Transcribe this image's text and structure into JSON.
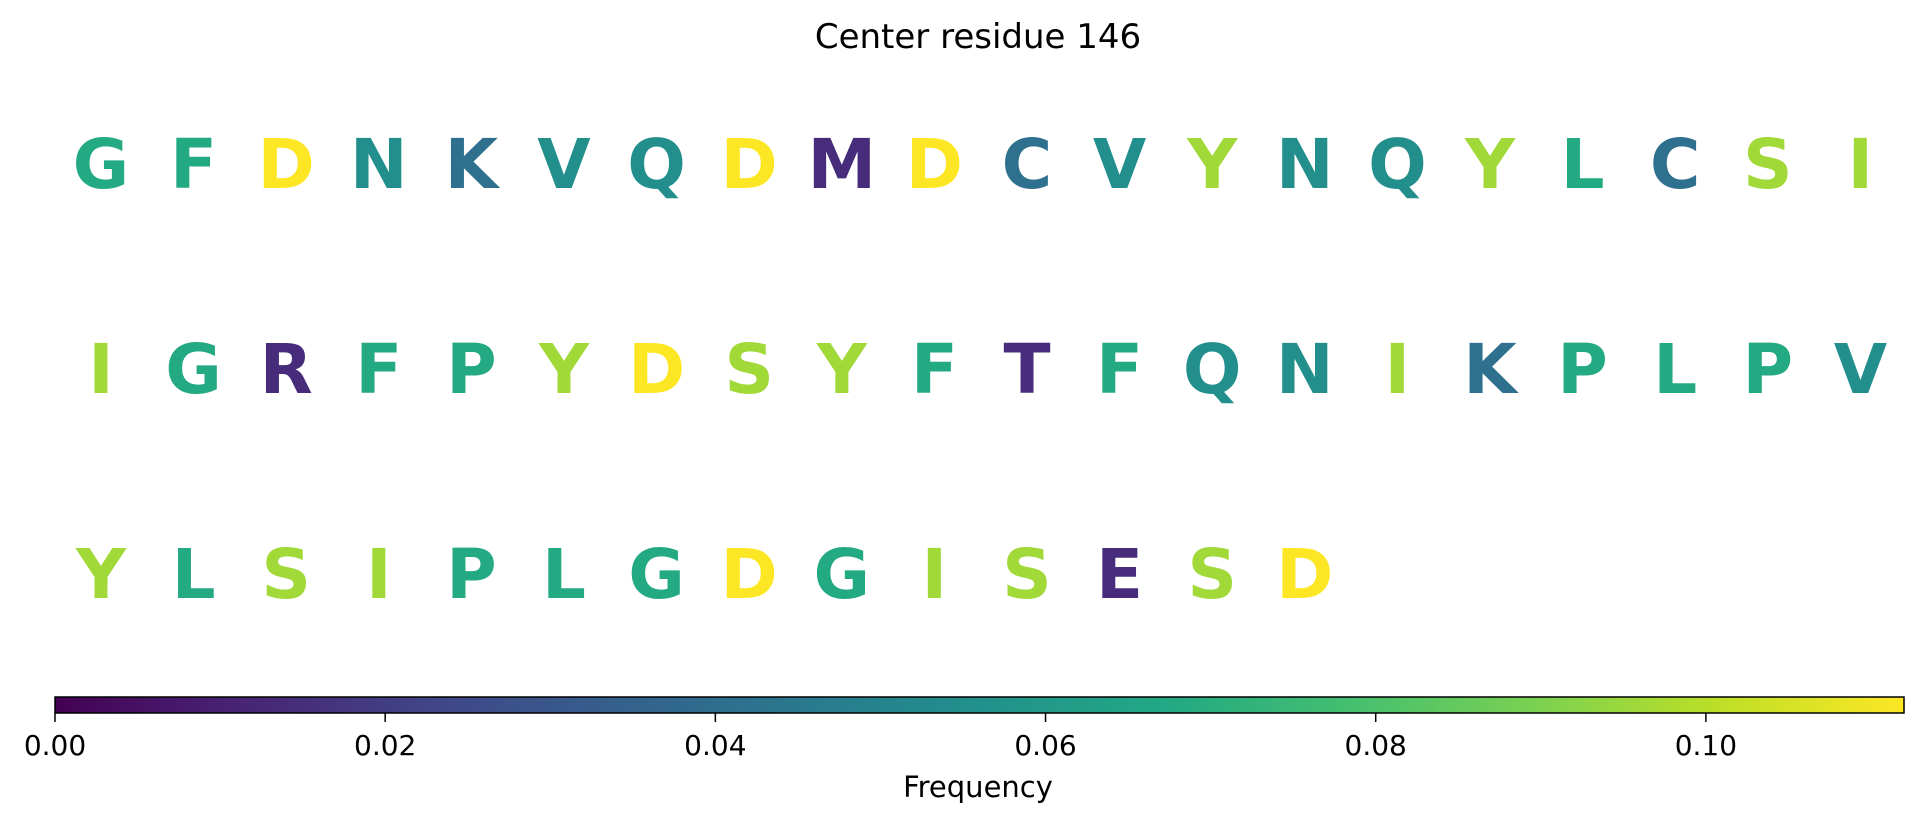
{
  "chart_data": {
    "type": "sequence-logo",
    "title": "Center residue 146",
    "residues": [
      {
        "letter": "G",
        "value": 0.068
      },
      {
        "letter": "F",
        "value": 0.068
      },
      {
        "letter": "D",
        "value": 0.112
      },
      {
        "letter": "N",
        "value": 0.055
      },
      {
        "letter": "K",
        "value": 0.041
      },
      {
        "letter": "V",
        "value": 0.055
      },
      {
        "letter": "Q",
        "value": 0.055
      },
      {
        "letter": "D",
        "value": 0.112
      },
      {
        "letter": "M",
        "value": 0.014
      },
      {
        "letter": "D",
        "value": 0.112
      },
      {
        "letter": "C",
        "value": 0.041
      },
      {
        "letter": "V",
        "value": 0.055
      },
      {
        "letter": "Y",
        "value": 0.096
      },
      {
        "letter": "N",
        "value": 0.055
      },
      {
        "letter": "Q",
        "value": 0.055
      },
      {
        "letter": "Y",
        "value": 0.096
      },
      {
        "letter": "L",
        "value": 0.068
      },
      {
        "letter": "C",
        "value": 0.041
      },
      {
        "letter": "S",
        "value": 0.096
      },
      {
        "letter": "I",
        "value": 0.096
      },
      {
        "letter": "I",
        "value": 0.096
      },
      {
        "letter": "G",
        "value": 0.068
      },
      {
        "letter": "R",
        "value": 0.014
      },
      {
        "letter": "F",
        "value": 0.068
      },
      {
        "letter": "P",
        "value": 0.068
      },
      {
        "letter": "Y",
        "value": 0.096
      },
      {
        "letter": "D",
        "value": 0.112
      },
      {
        "letter": "S",
        "value": 0.096
      },
      {
        "letter": "Y",
        "value": 0.096
      },
      {
        "letter": "F",
        "value": 0.068
      },
      {
        "letter": "T",
        "value": 0.014
      },
      {
        "letter": "F",
        "value": 0.068
      },
      {
        "letter": "Q",
        "value": 0.055
      },
      {
        "letter": "N",
        "value": 0.055
      },
      {
        "letter": "I",
        "value": 0.096
      },
      {
        "letter": "K",
        "value": 0.041
      },
      {
        "letter": "P",
        "value": 0.068
      },
      {
        "letter": "L",
        "value": 0.068
      },
      {
        "letter": "P",
        "value": 0.068
      },
      {
        "letter": "V",
        "value": 0.055
      },
      {
        "letter": "Y",
        "value": 0.096
      },
      {
        "letter": "L",
        "value": 0.068
      },
      {
        "letter": "S",
        "value": 0.096
      },
      {
        "letter": "I",
        "value": 0.096
      },
      {
        "letter": "P",
        "value": 0.068
      },
      {
        "letter": "L",
        "value": 0.068
      },
      {
        "letter": "G",
        "value": 0.068
      },
      {
        "letter": "D",
        "value": 0.112
      },
      {
        "letter": "G",
        "value": 0.068
      },
      {
        "letter": "I",
        "value": 0.096
      },
      {
        "letter": "S",
        "value": 0.096
      },
      {
        "letter": "E",
        "value": 0.014
      },
      {
        "letter": "S",
        "value": 0.096
      },
      {
        "letter": "D",
        "value": 0.112
      }
    ],
    "colorbar": {
      "label": "Frequency",
      "range": [
        0,
        0.112
      ],
      "ticks": [
        0.0,
        0.02,
        0.04,
        0.06,
        0.08,
        0.1
      ],
      "tick_labels": [
        "0.00",
        "0.02",
        "0.04",
        "0.06",
        "0.08",
        "0.10"
      ],
      "colormap": "viridis",
      "orientation": "horizontal"
    }
  }
}
